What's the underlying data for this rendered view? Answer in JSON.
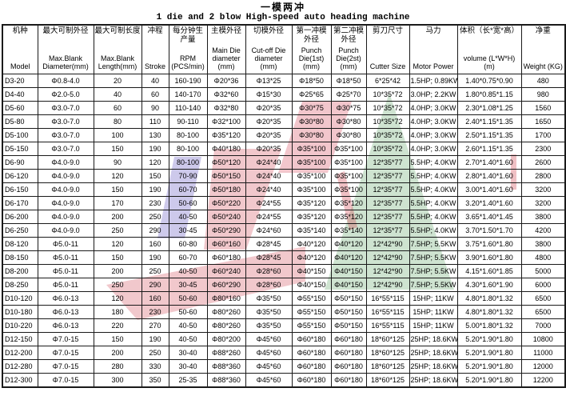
{
  "title": {
    "zh": "一模两冲",
    "en": "1 die and 2 blow High-speed auto heading machine"
  },
  "colors": {
    "watermark_red": "#d04a55",
    "watermark_pink": "#e2808e",
    "watermark_green": "#4f9a55",
    "watermark_purple": "#8277cc"
  },
  "table": {
    "columns": [
      {
        "key": "model",
        "zh": "机种",
        "en": "Model"
      },
      {
        "key": "max-blank-diameter",
        "zh": "最大可制外径",
        "en": "Max.Blank Diameter(mm)"
      },
      {
        "key": "max-blank-length",
        "zh": "最大可制长度",
        "en": "Max.Blank Length(mm)"
      },
      {
        "key": "stroke",
        "zh": "冲程",
        "en": "Stroke"
      },
      {
        "key": "rpm",
        "zh": "每分钟生产量",
        "en": "RPM (PCS/min)"
      },
      {
        "key": "main-die-diameter",
        "zh": "主模外径",
        "en": "Main Die diameter (mm)"
      },
      {
        "key": "cutoff-die-diameter",
        "zh": "切模外径",
        "en": "Cut-off Die diameter (mm)"
      },
      {
        "key": "punch-die-1st",
        "zh": "第一冲模外径",
        "en": "Punch Die(1st) (mm)"
      },
      {
        "key": "punch-die-2st",
        "zh": "第二冲模外径",
        "en": "Punch Die(2st) (mm)"
      },
      {
        "key": "cutter-size",
        "zh": "剪刀尺寸",
        "en": "Cutter Size"
      },
      {
        "key": "motor-power",
        "zh": "马力",
        "en": "Motor Power"
      },
      {
        "key": "volume",
        "zh": "体积（长*宽*高）",
        "en": "volume (L*W*H) (m)"
      },
      {
        "key": "weight",
        "zh": "净重",
        "en": "Weight (KG)"
      }
    ],
    "rows": [
      [
        "D3-20",
        "Φ0.8-4.0",
        "20",
        "40",
        "160-190",
        "Φ20*36",
        "Φ13*25",
        "Φ18*50",
        "Φ18*50",
        "6*25*42",
        "1.5HP; 0.89KW",
        "1.40*0.75*0.90",
        "480"
      ],
      [
        "D4-40",
        "Φ2.0-5.0",
        "40",
        "60",
        "140-170",
        "Φ32*60",
        "Φ15*30",
        "Φ25*65",
        "Φ25*70",
        "10*35*72",
        "3.0HP; 2.2KW",
        "1.80*0.85*1.15",
        "980"
      ],
      [
        "D5-60",
        "Φ3.0-7.0",
        "60",
        "90",
        "110-140",
        "Φ32*80",
        "Φ20*35",
        "Φ30*75",
        "Φ30*75",
        "10*35*72",
        "4.0HP; 3.0KW",
        "2.30*1.08*1.25",
        "1560"
      ],
      [
        "D5-80",
        "Φ3.0-7.0",
        "80",
        "110",
        "90-110",
        "Φ32*100",
        "Φ20*35",
        "Φ30*80",
        "Φ30*80",
        "10*35*72",
        "4.0HP; 3.0KW",
        "2.40*1.15*1.35",
        "1650"
      ],
      [
        "D5-100",
        "Φ3.0-7.0",
        "100",
        "130",
        "80-100",
        "Φ35*120",
        "Φ20*35",
        "Φ30*80",
        "Φ30*80",
        "10*35*72",
        "4.0HP; 3.0KW",
        "2.50*1.15*1.35",
        "1700"
      ],
      [
        "D5-150",
        "Φ3.0-7.0",
        "150",
        "190",
        "80-100",
        "Φ40*180",
        "Φ20*35",
        "Φ35*100",
        "Φ35*100",
        "10*35*72",
        "4.0HP; 3.0KW",
        "2.60*1.15*1.35",
        "2300"
      ],
      [
        "D6-90",
        "Φ4.0-9.0",
        "90",
        "120",
        "80-100",
        "Φ50*120",
        "Φ24*40",
        "Φ35*100",
        "Φ35*100",
        "12*35*77",
        "5.5HP; 4.0KW",
        "2.70*1.40*1.60",
        "2600"
      ],
      [
        "D6-120",
        "Φ4.0-9.0",
        "120",
        "150",
        "70-90",
        "Φ50*150",
        "Φ24*40",
        "Φ35*100",
        "Φ35*100",
        "12*35*77",
        "5.5HP; 4.0KW",
        "2.80*1.40*1.60",
        "2800"
      ],
      [
        "D6-150",
        "Φ4.0-9.0",
        "150",
        "190",
        "60-70",
        "Φ50*180",
        "Φ24*40",
        "Φ35*100",
        "Φ35*100",
        "12*35*77",
        "5.5HP; 4.0KW",
        "3.00*1.40*1.60",
        "3200"
      ],
      [
        "D6-170",
        "Φ4.0-9.0",
        "170",
        "230",
        "50-60",
        "Φ50*220",
        "Φ24*55",
        "Φ35*120",
        "Φ35*120",
        "12*35*77",
        "5.5HP; 4.0KW",
        "3.20*1.40*1.60",
        "3200"
      ],
      [
        "D6-200",
        "Φ4.0-9.0",
        "200",
        "250",
        "40-50",
        "Φ50*240",
        "Φ24*55",
        "Φ35*120",
        "Φ35*120",
        "12*35*77",
        "5.5HP; 4.0KW",
        "3.65*1.40*1.45",
        "3800"
      ],
      [
        "D6-250",
        "Φ4.0-9.0",
        "250",
        "290",
        "30-45",
        "Φ50*290",
        "Φ24*60",
        "Φ35*140",
        "Φ35*140",
        "12*35*77",
        "5.5HP; 4.0KW",
        "3.70*1.50*1.70",
        "4200"
      ],
      [
        "D8-120",
        "Φ5.0-11",
        "120",
        "160",
        "60-80",
        "Φ60*160",
        "Φ28*45",
        "Φ40*120",
        "Φ40*120",
        "12*42*90",
        "7.5HP; 5.5KW",
        "3.75*1.60*1.80",
        "3800"
      ],
      [
        "D8-150",
        "Φ5.0-11",
        "150",
        "190",
        "60-70",
        "Φ60*180",
        "Φ28*45",
        "Φ40*120",
        "Φ40*120",
        "12*42*90",
        "7.5HP; 5.5KW",
        "3.90*1.60*1.80",
        "4800"
      ],
      [
        "D8-200",
        "Φ5.0-11",
        "200",
        "250",
        "40-50",
        "Φ60*240",
        "Φ28*60",
        "Φ40*150",
        "Φ40*150",
        "12*42*90",
        "7.5HP; 5.5KW",
        "4.15*1.60*1.85",
        "5000"
      ],
      [
        "D8-250",
        "Φ5.0-11",
        "250",
        "290",
        "30-45",
        "Φ60*290",
        "Φ28*60",
        "Φ40*150",
        "Φ40*150",
        "12*42*90",
        "7.5HP; 5.5KW",
        "4.30*1.60*1.90",
        "6000"
      ],
      [
        "D10-120",
        "Φ6.0-13",
        "120",
        "160",
        "50-60",
        "Φ80*160",
        "Φ35*50",
        "Φ55*150",
        "Φ50*150",
        "16*55*115",
        "15HP; 11KW",
        "4.80*1.80*1.32",
        "6500"
      ],
      [
        "D10-180",
        "Φ6.0-13",
        "180",
        "230",
        "50-60",
        "Φ80*260",
        "Φ35*50",
        "Φ55*150",
        "Φ50*150",
        "16*55*115",
        "15HP; 11KW",
        "4.80*1.80*1.32",
        "6500"
      ],
      [
        "D10-220",
        "Φ6.0-13",
        "220",
        "270",
        "40-50",
        "Φ80*260",
        "Φ35*50",
        "Φ55*150",
        "Φ50*150",
        "16*55*115",
        "15HP; 11KW",
        "5.00*1.80*1.32",
        "7000"
      ],
      [
        "D12-150",
        "Φ7.0-15",
        "150",
        "190",
        "40-50",
        "Φ80*200",
        "Φ45*60",
        "Φ60*180",
        "Φ60*180",
        "18*60*125",
        "25HP; 18.6KW",
        "5.20*1.90*1.80",
        "10800"
      ],
      [
        "D12-200",
        "Φ7.0-15",
        "200",
        "250",
        "30-40",
        "Φ88*260",
        "Φ45*60",
        "Φ60*180",
        "Φ60*180",
        "18*60*125",
        "25HP; 18.6KW",
        "5.20*1.90*1.80",
        "11000"
      ],
      [
        "D12-280",
        "Φ7.0-15",
        "280",
        "330",
        "30-40",
        "Φ88*360",
        "Φ45*60",
        "Φ60*180",
        "Φ60*180",
        "18*60*125",
        "25HP; 18.6KW",
        "5.20*1.90*1.80",
        "12000"
      ],
      [
        "D12-300",
        "Φ7.0-15",
        "300",
        "350",
        "25-35",
        "Φ88*360",
        "Φ45*60",
        "Φ60*180",
        "Φ60*180",
        "18*60*125",
        "25HP; 18.6KW",
        "5.20*1.90*1.80",
        "12200"
      ]
    ]
  }
}
